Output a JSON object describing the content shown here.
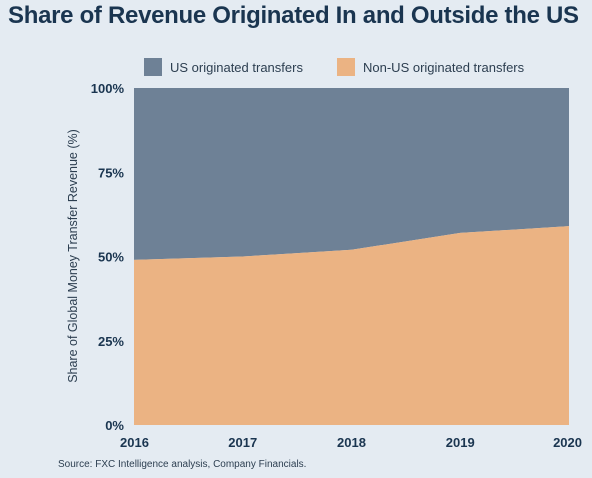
{
  "colors": {
    "us": "#6e8196",
    "non_us": "#ebb383"
  },
  "chart_data": {
    "type": "area",
    "stacked": true,
    "percent": true,
    "title": "Share of Revenue Originated In and Outside the US",
    "ylabel": "Share of Global Money Transfer Revenue (%)",
    "xlabel": "",
    "x": [
      "2016",
      "2017",
      "2018",
      "2019",
      "2020"
    ],
    "yticks": [
      "0%",
      "25%",
      "50%",
      "75%",
      "100%"
    ],
    "ylim": [
      0,
      100
    ],
    "series": [
      {
        "name": "Non-US originated transfers",
        "values": [
          49,
          50,
          52,
          57,
          59
        ]
      },
      {
        "name": "US originated transfers",
        "values": [
          51,
          50,
          48,
          43,
          41
        ]
      }
    ],
    "legend": [
      "US originated transfers",
      "Non-US originated transfers"
    ],
    "legend_position": "top"
  },
  "source": "Source: FXC Intelligence analysis, Company Financials."
}
